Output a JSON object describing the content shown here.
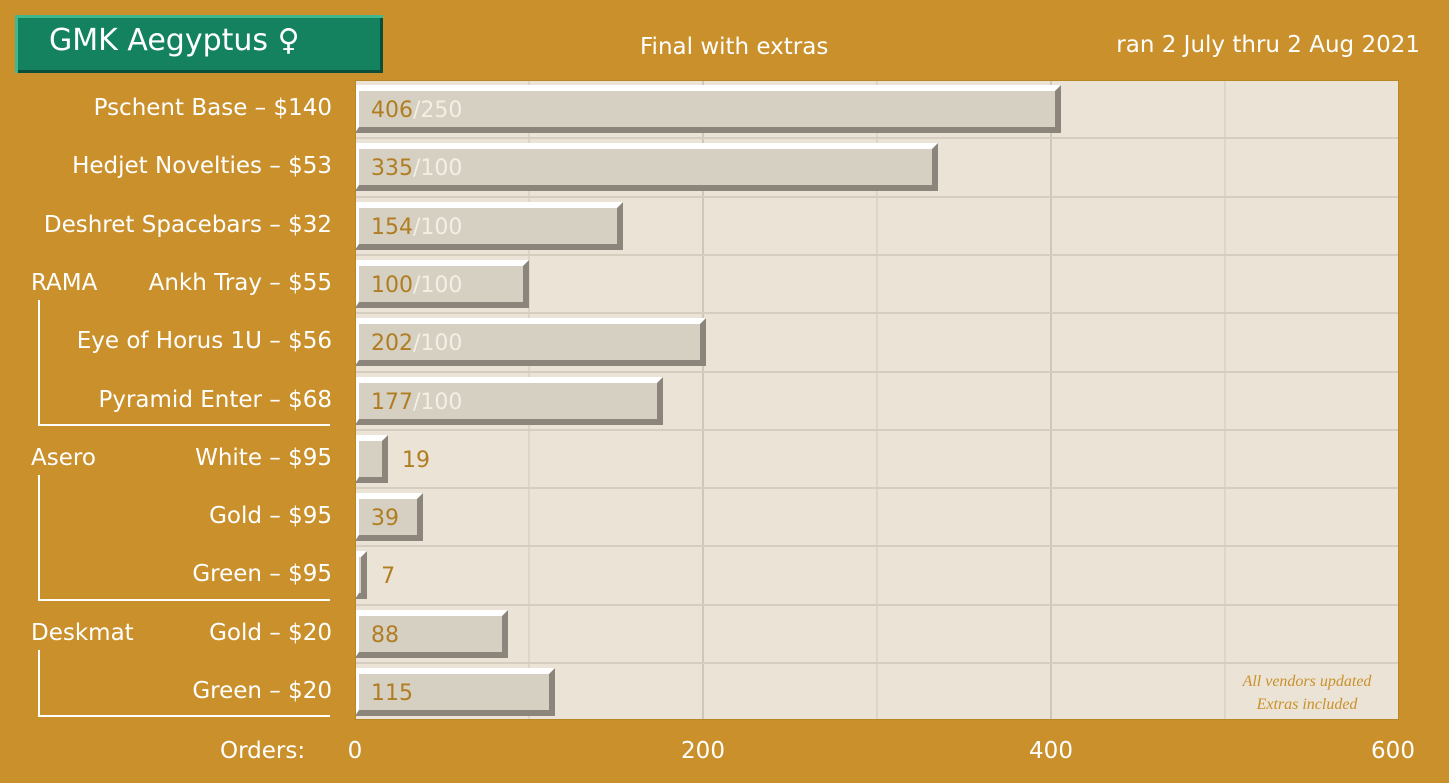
{
  "header": {
    "title": "GMK Aegyptus ♀",
    "subtitle": "Final with extras",
    "dates": "ran 2 July thru 2 Aug 2021"
  },
  "chart_data": {
    "type": "bar",
    "orientation": "horizontal",
    "xlabel": "Orders:",
    "xlim": [
      0,
      600
    ],
    "xticks": [
      "0",
      "200",
      "400",
      "600"
    ],
    "grid": true,
    "categories": [
      "Pschent Base – $140",
      "Hedjet Novelties – $53",
      "Deshret Spacebars – $32",
      "Ankh Tray – $55",
      "Eye of Horus 1U – $56",
      "Pyramid Enter – $68",
      "White – $95",
      "Gold – $95",
      "Green – $95",
      "Gold – $20",
      "Green – $20"
    ],
    "values": [
      406,
      335,
      154,
      100,
      202,
      177,
      19,
      39,
      7,
      88,
      115
    ],
    "targets": [
      "250",
      "100",
      "100",
      "100",
      "100",
      "100",
      "",
      "",
      "",
      "",
      ""
    ],
    "groups": [
      {
        "label": "RAMA",
        "start": 3,
        "end": 5
      },
      {
        "label": "Asero",
        "start": 6,
        "end": 8
      },
      {
        "label": "Deskmat",
        "start": 9,
        "end": 10
      }
    ],
    "annotation": [
      "All vendors updated",
      "Extras included"
    ]
  },
  "colors": {
    "background": "#c9902b",
    "plot": "#ebe4d6",
    "bar": "#d6d0c2",
    "value_text": "#b07d22",
    "title_box": "#14825f"
  }
}
